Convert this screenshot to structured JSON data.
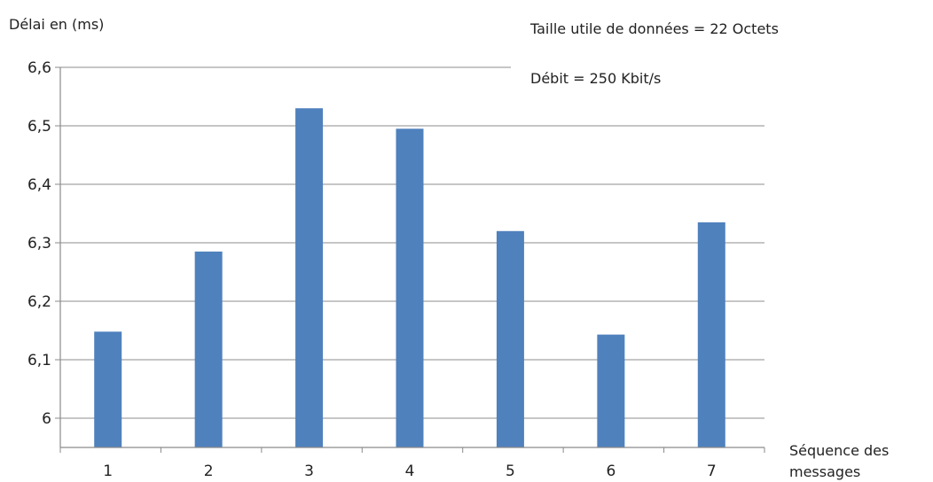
{
  "chart_data": {
    "type": "bar",
    "title": "",
    "ylabel": "Délai en (ms)",
    "xlabel": "Séquence des messages",
    "categories": [
      "1",
      "2",
      "3",
      "4",
      "5",
      "6",
      "7"
    ],
    "values": [
      6.148,
      6.285,
      6.53,
      6.495,
      6.32,
      6.143,
      6.335
    ],
    "ylim": [
      5.95,
      6.6
    ],
    "yticks": [
      "6",
      "6,1",
      "6,2",
      "6,3",
      "6,4",
      "6,5",
      "6,6"
    ],
    "ytick_values": [
      6.0,
      6.1,
      6.2,
      6.3,
      6.4,
      6.5,
      6.6
    ],
    "grid": true,
    "bar_color": "#4f81bd",
    "annotations": {
      "payload": "Taille utile de données =  22 Octets",
      "rate": "Débit = 250 Kbit/s"
    }
  }
}
